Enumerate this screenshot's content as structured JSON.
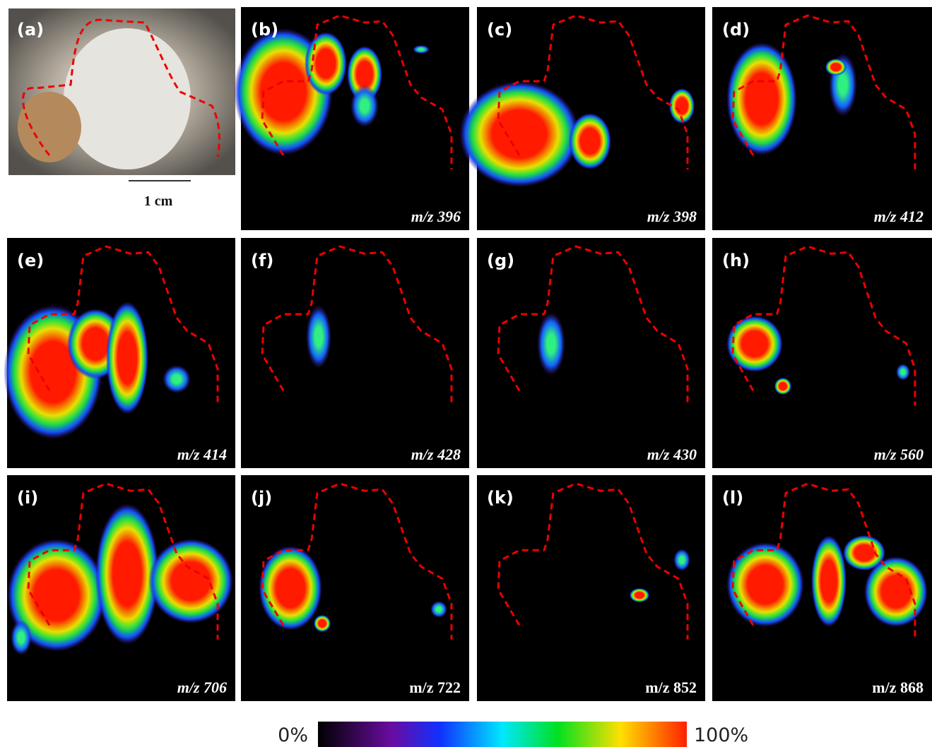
{
  "panels": [
    {
      "label": "(a)"
    },
    {
      "label": "(b)",
      "mz": "m/z 396",
      "italic": true
    },
    {
      "label": "(c)",
      "mz": "m/z 398",
      "italic": true
    },
    {
      "label": "(d)",
      "mz": "m/z 412",
      "italic": true
    },
    {
      "label": "(e)",
      "mz": "m/z 414",
      "italic": true
    },
    {
      "label": "(f)",
      "mz": "m/z 428",
      "italic": true
    },
    {
      "label": "(g)",
      "mz": "m/z 430",
      "italic": true
    },
    {
      "label": "(h)",
      "mz": "m/z 560",
      "italic": true
    },
    {
      "label": "(i)",
      "mz": "m/z 706",
      "italic": true
    },
    {
      "label": "(j)",
      "mz": "m/z 722",
      "italic": false
    },
    {
      "label": "(k)",
      "mz": "m/z 852",
      "italic": false
    },
    {
      "label": "(l)",
      "mz": "m/z 868",
      "italic": false
    }
  ],
  "scale_bar": "1 cm",
  "colorbar": {
    "min_label": "0%",
    "max_label": "100%"
  }
}
